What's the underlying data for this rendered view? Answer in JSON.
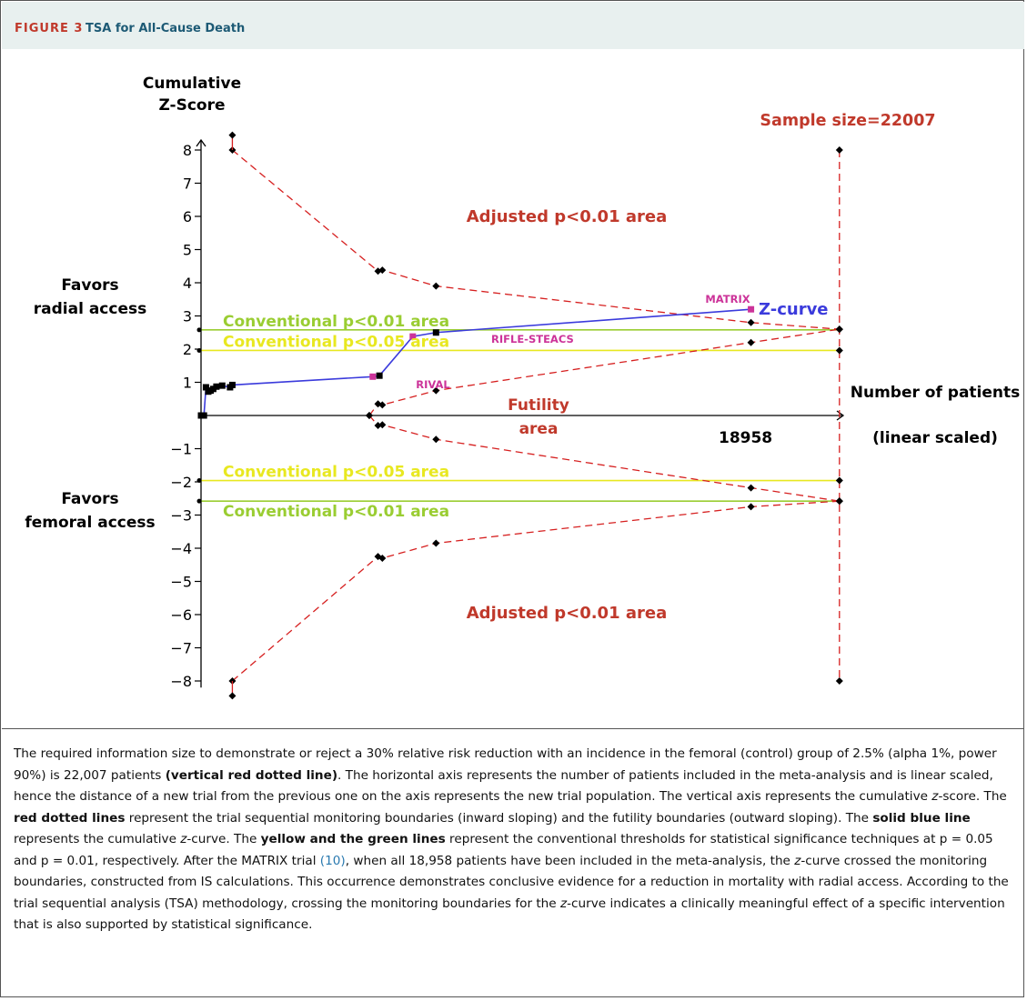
{
  "figure": {
    "label": "FIGURE 3",
    "title": "TSA for All-Cause Death"
  },
  "chart_data": {
    "type": "line",
    "ylabel": [
      "Cumulative",
      "Z-Score"
    ],
    "xlabel": [
      "Number of patients",
      "(linear scaled)"
    ],
    "x_scale": "linear",
    "ylim": [
      -8.5,
      8.5
    ],
    "yticks": [
      {
        "value": 8,
        "label": "8"
      },
      {
        "value": 7,
        "label": "7"
      },
      {
        "value": 6,
        "label": "6"
      },
      {
        "value": 5,
        "label": "5"
      },
      {
        "value": 4,
        "label": "4"
      },
      {
        "value": 3,
        "label": "3"
      },
      {
        "value": 2,
        "label": "2"
      },
      {
        "value": 1,
        "label": "1"
      },
      {
        "value": -1,
        "label": "−1"
      },
      {
        "value": -2,
        "label": "−2"
      },
      {
        "value": -3,
        "label": "−3"
      },
      {
        "value": -4,
        "label": "−4"
      },
      {
        "value": -5,
        "label": "−5"
      },
      {
        "value": -6,
        "label": "−6"
      },
      {
        "value": -7,
        "label": "−7"
      },
      {
        "value": -8,
        "label": "−8"
      }
    ],
    "xticks": [
      {
        "value": 18958,
        "label": "18958"
      }
    ],
    "required_information_size": 22007,
    "sample_size_label": "Sample size=22007",
    "side_labels": {
      "radial": [
        "Favors",
        "radial access"
      ],
      "femoral": [
        "Favors",
        "femoral access"
      ]
    },
    "conventional_thresholds": [
      {
        "label": "Conventional p<0.01 area",
        "value": 2.58,
        "color": "#9acd32"
      },
      {
        "label": "Conventional p<0.05 area",
        "value": 1.96,
        "color": "#e8e820"
      },
      {
        "label": "Conventional p<0.05 area",
        "value": -1.96,
        "color": "#e8e820"
      },
      {
        "label": "Conventional p<0.01 area",
        "value": -2.58,
        "color": "#9acd32"
      }
    ],
    "area_labels": {
      "adjusted_upper": "Adjusted p<0.01 area",
      "adjusted_lower": "Adjusted p<0.01 area",
      "futility": [
        "Futility",
        "area"
      ]
    },
    "series": [
      {
        "name": "Z-curve",
        "color": "#3b3bdc",
        "x": [
          0,
          100,
          170,
          250,
          330,
          420,
          530,
          730,
          1000,
          1080,
          5920,
          6150,
          7300,
          8100,
          18958
        ],
        "y": [
          0,
          0,
          0.85,
          0.72,
          0.75,
          0.8,
          0.87,
          0.9,
          0.85,
          0.92,
          1.17,
          1.2,
          2.38,
          2.5,
          3.2
        ]
      },
      {
        "name": "Upper monitoring boundary",
        "color": "#d62020",
        "x": [
          1080,
          6100,
          6250,
          8100,
          18958,
          22007
        ],
        "y": [
          8.0,
          4.35,
          4.38,
          3.9,
          2.8,
          2.6
        ]
      },
      {
        "name": "Lower monitoring boundary",
        "color": "#d62020",
        "x": [
          1080,
          6100,
          6250,
          8100,
          18958,
          22007
        ],
        "y": [
          -8.0,
          -4.25,
          -4.3,
          -3.85,
          -2.75,
          -2.58
        ]
      },
      {
        "name": "Upper futility boundary",
        "color": "#d62020",
        "x": [
          5800,
          6100,
          6250,
          8100,
          18958,
          22007
        ],
        "y": [
          0,
          0.35,
          0.32,
          0.75,
          2.2,
          2.6
        ]
      },
      {
        "name": "Lower futility boundary",
        "color": "#d62020",
        "x": [
          5800,
          6100,
          6250,
          8100,
          18958,
          22007
        ],
        "y": [
          0,
          -0.3,
          -0.28,
          -0.72,
          -2.18,
          -2.58
        ]
      }
    ],
    "trial_labels": [
      {
        "label": "RIVAL",
        "x": 5920,
        "y": 1.17
      },
      {
        "label": "RIFLE-STEACS",
        "x": 7300,
        "y": 2.38
      },
      {
        "label": "MATRIX",
        "x": 18958,
        "y": 3.2
      }
    ],
    "series_label": "Z-curve"
  },
  "caption": {
    "text1": "The required information size to demonstrate or reject a 30% relative risk reduction with an incidence in the femoral (control) group of 2.5% (alpha 1%, power 90%) is 22,007 patients ",
    "bold1": "(vertical red dotted line)",
    "text2": ". The horizontal axis represents the number of patients included in the meta-analysis and is linear scaled, hence the distance of a new trial from the previous one on the axis represents the new trial population. The vertical axis represents the cumulative ",
    "italic_z": "z",
    "text3": "-score. The ",
    "bold2": "red dotted lines",
    "text4": " represent the trial sequential monitoring boundaries (inward sloping) and the futility boundaries (outward sloping). The ",
    "bold3": "solid blue line",
    "text5": " represents the cumulative ",
    "text6": "-curve. The ",
    "bold4": "yellow and the green lines",
    "text7": " represent the conventional thresholds for statistical significance techniques at p = 0.05 and p = 0.01, respectively. After the MATRIX trial ",
    "cite": "(10)",
    "text8": ", when all 18,958 patients have been included in the meta-analysis, the ",
    "text9": "-curve crossed the monitoring boundaries, constructed from IS calculations. This occurrence demonstrates conclusive evidence for a reduction in mortality with radial access. According to the trial sequential analysis (TSA) methodology, crossing the monitoring boundaries for the ",
    "text10": "-curve indicates a clinically meaningful effect of a specific intervention that is also supported by statistical significance."
  }
}
